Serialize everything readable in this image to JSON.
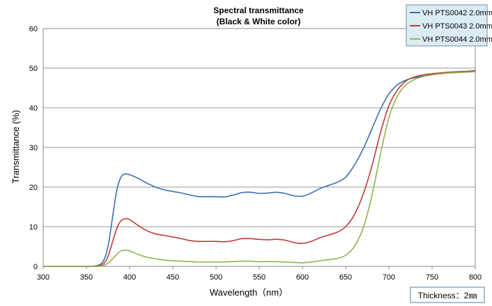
{
  "chart_data": {
    "type": "line",
    "title": "Spectral transmittance",
    "subtitle": "(Black & White color)",
    "xlabel": "Wavelength（nm）",
    "ylabel": "Transmittance (%)",
    "xlim": [
      300,
      800
    ],
    "ylim": [
      0,
      60
    ],
    "xticks": [
      300,
      350,
      400,
      450,
      500,
      550,
      600,
      650,
      700,
      750,
      800
    ],
    "yticks": [
      0,
      10,
      20,
      30,
      40,
      50,
      60
    ],
    "grid": "horizontal",
    "legend_position": "top-right",
    "note": "Thickness：2㎜",
    "series": [
      {
        "name": "VH PTS0042 2.0mm",
        "color": "#3d6db0",
        "x": [
          300,
          350,
          360,
          365,
          370,
          375,
          380,
          385,
          390,
          395,
          400,
          410,
          420,
          430,
          440,
          450,
          460,
          470,
          480,
          490,
          500,
          510,
          520,
          530,
          540,
          550,
          560,
          570,
          580,
          590,
          600,
          610,
          620,
          630,
          640,
          650,
          660,
          670,
          680,
          690,
          700,
          710,
          720,
          730,
          740,
          750,
          760,
          770,
          780,
          790,
          800
        ],
        "y": [
          0,
          0,
          0.1,
          0.4,
          1.5,
          5,
          12,
          19,
          22.5,
          23.3,
          23.1,
          22.2,
          21,
          20,
          19.3,
          18.9,
          18.5,
          18,
          17.6,
          17.6,
          17.6,
          17.5,
          18.0,
          18.6,
          18.7,
          18.4,
          18.5,
          18.7,
          18.4,
          17.8,
          17.7,
          18.5,
          19.6,
          20.4,
          21.2,
          22.5,
          25.5,
          29.5,
          34.5,
          39.5,
          43.5,
          45.8,
          47.0,
          47.6,
          48.0,
          48.4,
          48.6,
          48.8,
          48.9,
          49.0,
          49.2
        ]
      },
      {
        "name": "VH PTS0043 2.0mm",
        "color": "#be3a3a",
        "x": [
          300,
          350,
          360,
          365,
          370,
          375,
          380,
          385,
          390,
          395,
          400,
          410,
          420,
          430,
          440,
          450,
          460,
          470,
          480,
          490,
          500,
          510,
          520,
          530,
          540,
          550,
          560,
          570,
          580,
          590,
          600,
          610,
          620,
          630,
          640,
          650,
          660,
          670,
          680,
          690,
          700,
          710,
          720,
          730,
          740,
          750,
          760,
          770,
          780,
          790,
          800
        ],
        "y": [
          0,
          0,
          0,
          0.2,
          0.7,
          2.5,
          6,
          9.5,
          11.5,
          12,
          11.8,
          10.3,
          9,
          8.2,
          7.8,
          7.4,
          7.0,
          6.5,
          6.3,
          6.3,
          6.3,
          6.2,
          6.5,
          7.0,
          7.0,
          6.8,
          6.7,
          6.8,
          6.6,
          6.0,
          5.8,
          6.3,
          7.2,
          7.9,
          8.6,
          10.0,
          13.0,
          18.0,
          25.0,
          33.5,
          40.5,
          44.5,
          46.8,
          47.8,
          48.3,
          48.6,
          48.8,
          49.0,
          49.1,
          49.2,
          49.4
        ]
      },
      {
        "name": "VH PTS0044 2.0mm",
        "color": "#8db54a",
        "x": [
          300,
          350,
          360,
          365,
          370,
          375,
          380,
          385,
          390,
          395,
          400,
          410,
          420,
          430,
          440,
          450,
          460,
          470,
          480,
          490,
          500,
          510,
          520,
          530,
          540,
          550,
          560,
          570,
          580,
          590,
          600,
          610,
          620,
          630,
          640,
          650,
          660,
          670,
          680,
          690,
          700,
          710,
          720,
          730,
          740,
          750,
          760,
          770,
          780,
          790,
          800
        ],
        "y": [
          0,
          0,
          0,
          0,
          0.2,
          0.8,
          1.8,
          3.0,
          3.9,
          4.1,
          3.9,
          3.0,
          2.3,
          1.9,
          1.6,
          1.4,
          1.3,
          1.2,
          1.1,
          1.1,
          1.1,
          1.1,
          1.2,
          1.3,
          1.3,
          1.2,
          1.2,
          1.2,
          1.1,
          1.0,
          0.9,
          1.1,
          1.4,
          1.7,
          2.0,
          2.8,
          5.0,
          9.5,
          17.5,
          28.0,
          37.5,
          43.0,
          45.8,
          47.2,
          47.9,
          48.3,
          48.6,
          48.8,
          48.9,
          49.0,
          49.1
        ]
      }
    ]
  }
}
